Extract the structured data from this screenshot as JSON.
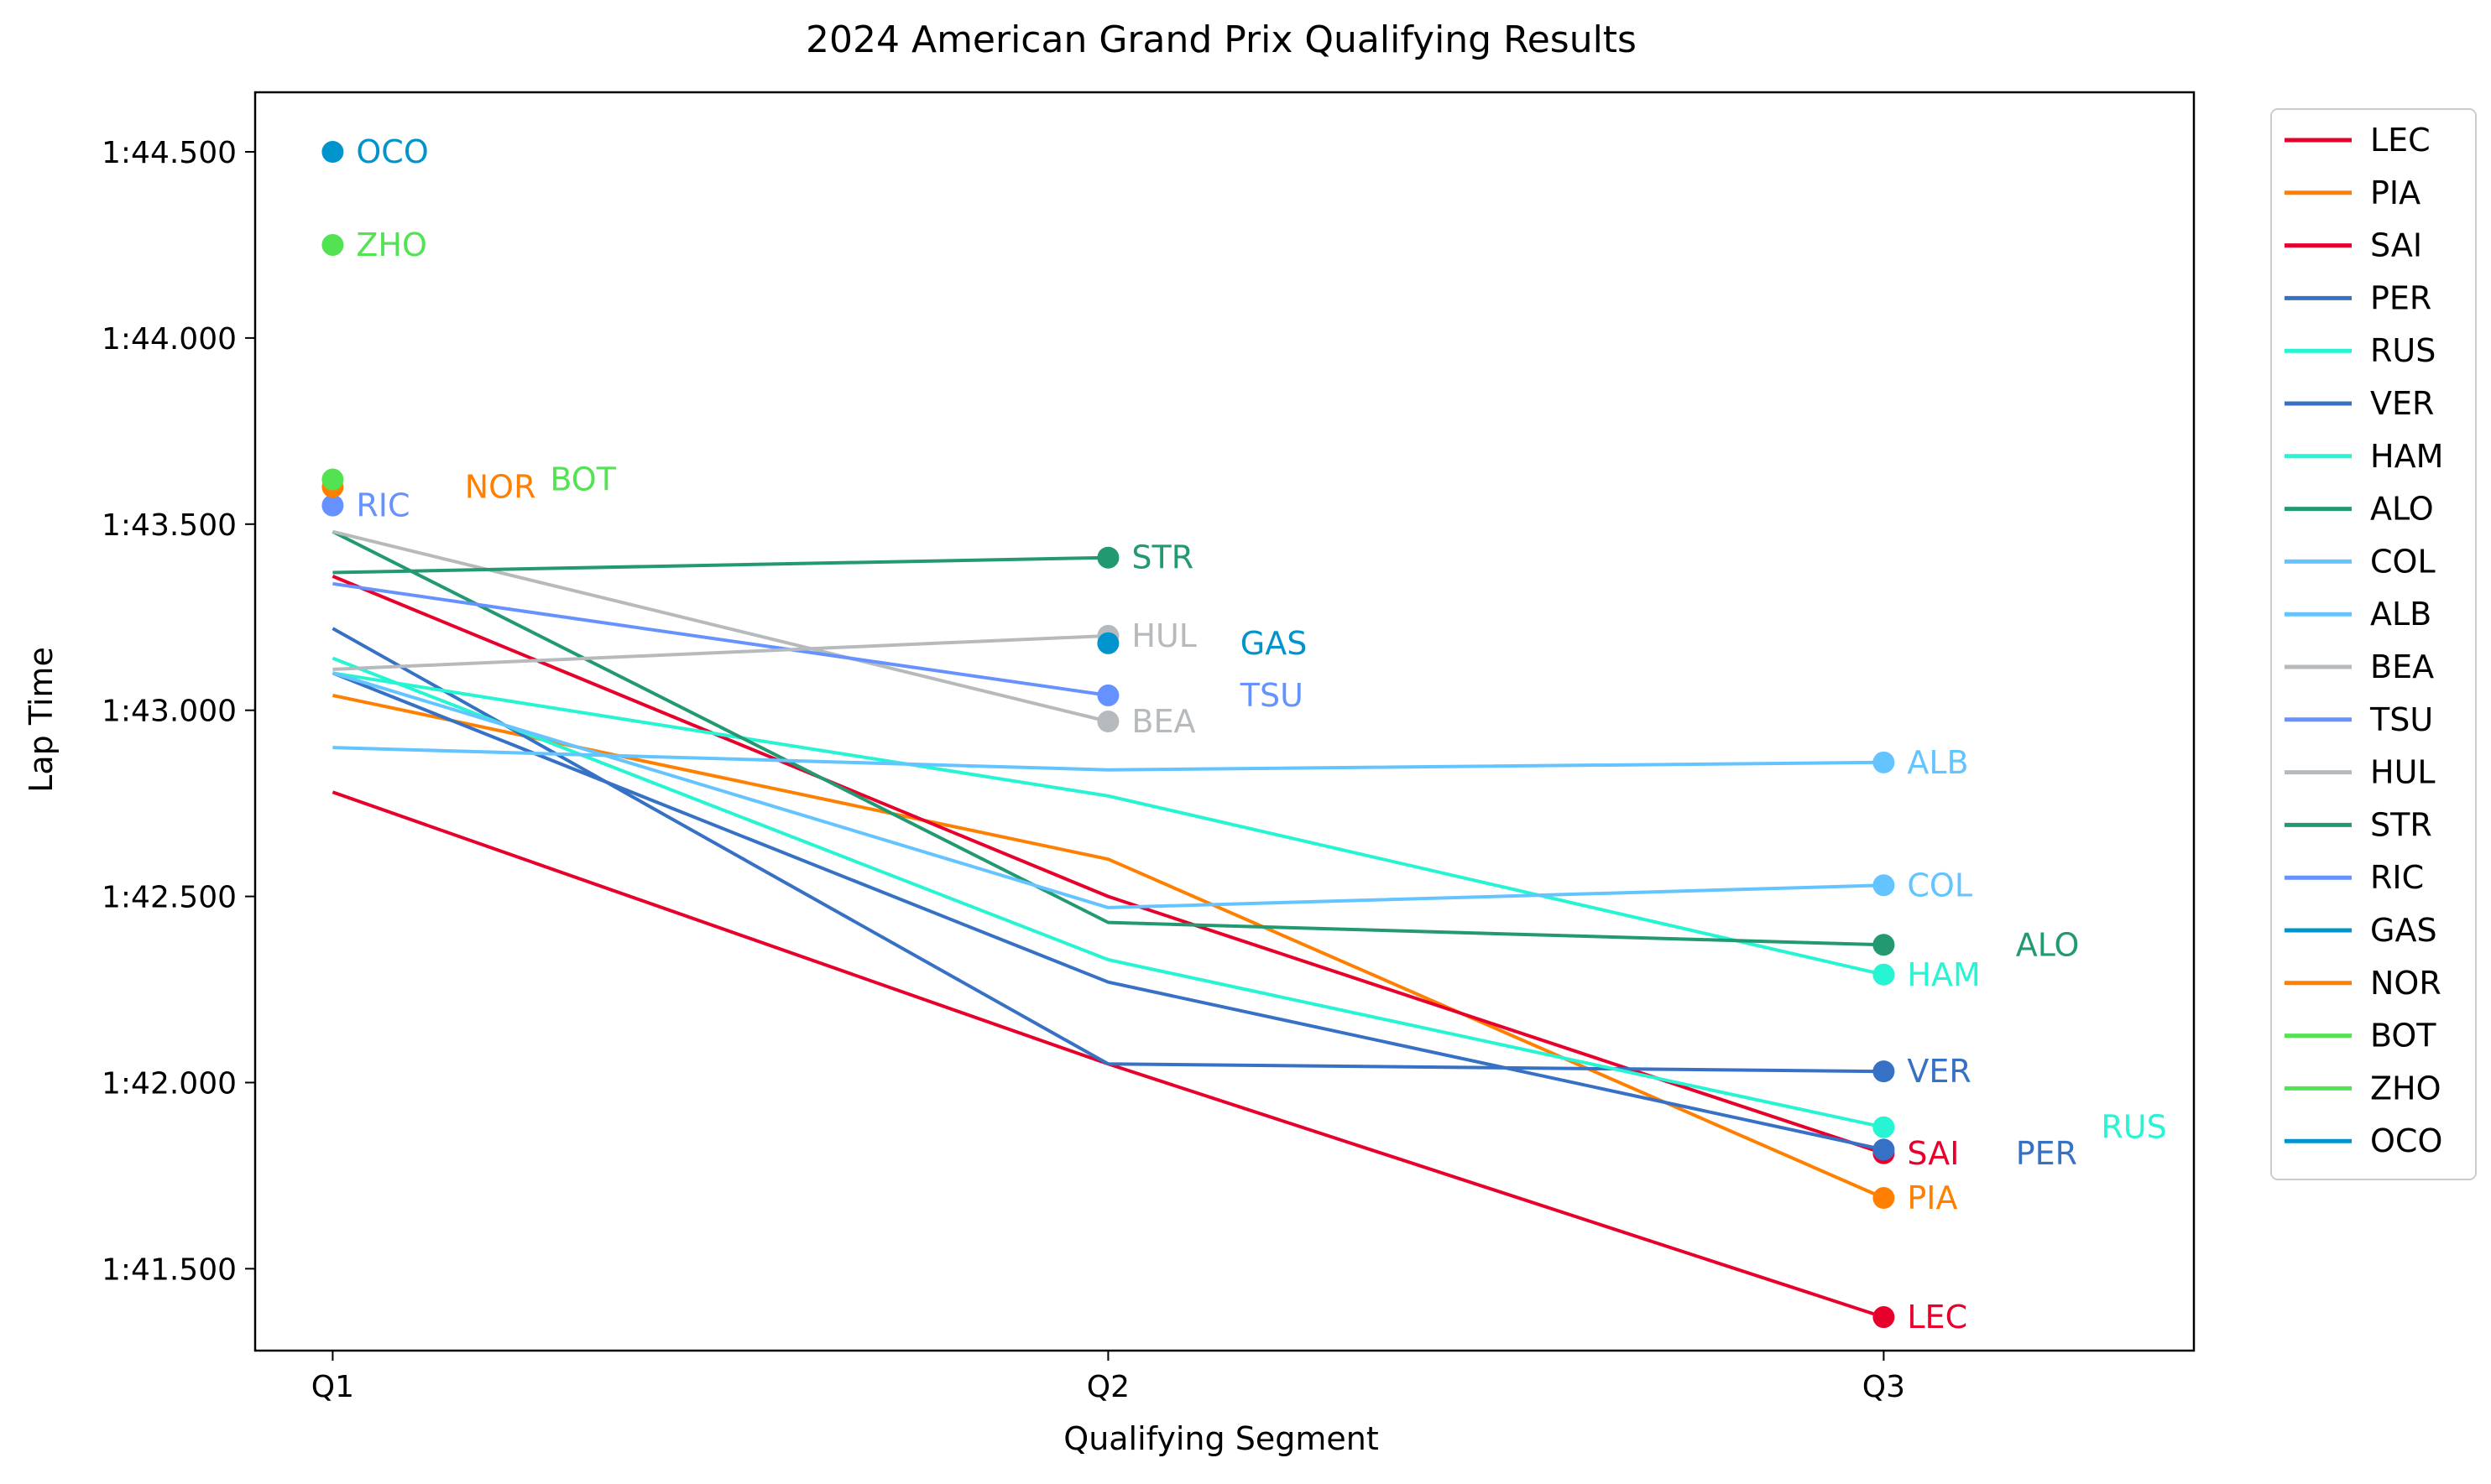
{
  "chart_data": {
    "type": "line",
    "title": "2024 American Grand Prix Qualifying Results",
    "xlabel": "Qualifying Segment",
    "ylabel": "Lap Time",
    "x": [
      "Q1",
      "Q2",
      "Q3"
    ],
    "xlim": [
      -0.1,
      2.4
    ],
    "ylim": [
      101.28,
      104.66
    ],
    "y_ticks": [
      101.5,
      102.0,
      102.5,
      103.0,
      103.5,
      104.0,
      104.5
    ],
    "y_tick_labels": [
      "1:41.500",
      "1:42.000",
      "1:42.500",
      "1:43.000",
      "1:43.500",
      "1:44.000",
      "1:44.500"
    ],
    "grid": false,
    "legend": {
      "placement": "outside-right",
      "entries": [
        "LEC",
        "PIA",
        "SAI",
        "PER",
        "RUS",
        "VER",
        "HAM",
        "ALO",
        "COL",
        "ALB",
        "BEA",
        "TSU",
        "HUL",
        "STR",
        "RIC",
        "GAS",
        "NOR",
        "BOT",
        "ZHO",
        "OCO"
      ]
    },
    "series": [
      {
        "name": "LEC",
        "color": "#e8002d",
        "values": [
          102.78,
          102.05,
          101.37
        ],
        "label_anchor": [
          2.0,
          101.37
        ]
      },
      {
        "name": "PIA",
        "color": "#ff8000",
        "values": [
          103.04,
          102.6,
          101.69
        ],
        "label_anchor": [
          2.0,
          101.69
        ]
      },
      {
        "name": "SAI",
        "color": "#e8002d",
        "values": [
          103.36,
          102.5,
          101.81
        ],
        "label_anchor": [
          2.0,
          101.81
        ]
      },
      {
        "name": "PER",
        "color": "#3671c6",
        "values": [
          103.22,
          102.05,
          102.03
        ],
        "label_anchor": [
          2.14,
          101.81
        ]
      },
      {
        "name": "RUS",
        "color": "#27f4d2",
        "values": [
          103.14,
          102.33,
          101.88
        ],
        "label_anchor": [
          2.25,
          101.88
        ]
      },
      {
        "name": "VER",
        "color": "#3671c6",
        "values": [
          103.1,
          102.27,
          101.82
        ],
        "label_anchor": [
          2.0,
          102.03
        ]
      },
      {
        "name": "HAM",
        "color": "#27f4d2",
        "values": [
          103.1,
          102.77,
          102.29
        ],
        "label_anchor": [
          2.0,
          102.29
        ]
      },
      {
        "name": "ALO",
        "color": "#229971",
        "values": [
          103.48,
          102.43,
          102.37
        ],
        "label_anchor": [
          2.14,
          102.37
        ]
      },
      {
        "name": "COL",
        "color": "#64c4ff",
        "values": [
          103.1,
          102.47,
          102.53
        ],
        "label_anchor": [
          2.0,
          102.53
        ]
      },
      {
        "name": "ALB",
        "color": "#64c4ff",
        "values": [
          102.9,
          102.84,
          102.86
        ],
        "label_anchor": [
          2.0,
          102.86
        ]
      },
      {
        "name": "BEA",
        "color": "#b6babd",
        "values": [
          103.48,
          102.97,
          null
        ],
        "label_anchor": [
          1.0,
          102.97
        ]
      },
      {
        "name": "TSU",
        "color": "#6692ff",
        "values": [
          103.34,
          103.04,
          null
        ],
        "label_anchor": [
          1.14,
          103.04
        ]
      },
      {
        "name": "HUL",
        "color": "#b6babd",
        "values": [
          103.11,
          103.2,
          null
        ],
        "label_anchor": [
          1.0,
          103.2
        ]
      },
      {
        "name": "STR",
        "color": "#229971",
        "values": [
          103.37,
          103.41,
          null
        ],
        "label_anchor": [
          1.0,
          103.41
        ]
      },
      {
        "name": "RIC",
        "color": "#6692ff",
        "values": [
          103.55,
          null,
          null
        ],
        "label_anchor": [
          0.0,
          103.55
        ]
      },
      {
        "name": "GAS",
        "color": "#0093cc",
        "values": [
          null,
          103.18,
          null
        ],
        "label_anchor": [
          1.14,
          103.18
        ]
      },
      {
        "name": "NOR",
        "color": "#ff8000",
        "values": [
          103.6,
          null,
          null
        ],
        "label_anchor": [
          0.14,
          103.6
        ]
      },
      {
        "name": "BOT",
        "color": "#52e252",
        "values": [
          103.62,
          null,
          null
        ],
        "label_anchor": [
          0.25,
          103.62
        ]
      },
      {
        "name": "ZHO",
        "color": "#52e252",
        "values": [
          104.25,
          null,
          null
        ],
        "label_anchor": [
          0.0,
          104.25
        ]
      },
      {
        "name": "OCO",
        "color": "#0093cc",
        "values": [
          104.5,
          null,
          null
        ],
        "label_anchor": [
          0.0,
          104.5
        ]
      }
    ]
  }
}
